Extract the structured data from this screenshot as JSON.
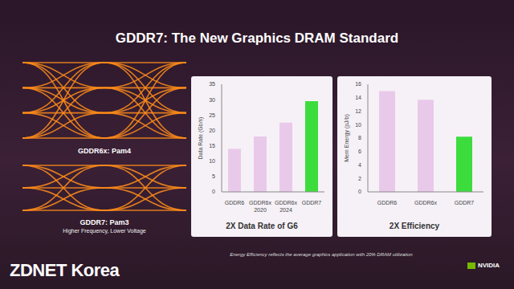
{
  "slide": {
    "title": "GDDR7: The New Graphics DRAM Standard",
    "eye_diagrams": [
      {
        "label": "GDDR6x: Pam4"
      },
      {
        "label": "GDDR7: Pam3",
        "subtitle": "Higher Frequency, Lower Voltage"
      }
    ],
    "footnote": "Energy Efficiency reflects the average graphics application with 20% DRAM utilization",
    "watermark": "ZDNET Korea",
    "logo": "NVIDIA"
  },
  "chart_data": [
    {
      "type": "bar",
      "title": "2X Data Rate of G6",
      "y_label": "Data Rate (Gb/s)",
      "categories": [
        "GDDR6",
        "GDDR6x 2020",
        "GDDR6x 2024",
        "GDDR7"
      ],
      "values": [
        14,
        18,
        22.5,
        29.5
      ],
      "colors": [
        "#e9c9ea",
        "#e9c9ea",
        "#e9c9ea",
        "#3ddc3d"
      ],
      "ylim": [
        0,
        35
      ],
      "yticks": [
        0,
        5,
        10,
        15,
        20,
        25,
        30,
        35
      ],
      "grid": false
    },
    {
      "type": "bar",
      "title": "2X Efficiency",
      "y_label": "Mem Energy (pJ/b)",
      "categories": [
        "GDDR6",
        "GDDR6x",
        "GDDR7"
      ],
      "values": [
        15,
        13.7,
        8.2
      ],
      "colors": [
        "#e9c9ea",
        "#e9c9ea",
        "#3ddc3d"
      ],
      "ylim": [
        0,
        16
      ],
      "yticks": [
        0,
        2,
        4,
        6,
        8,
        10,
        12,
        14,
        16
      ],
      "grid": false
    }
  ]
}
